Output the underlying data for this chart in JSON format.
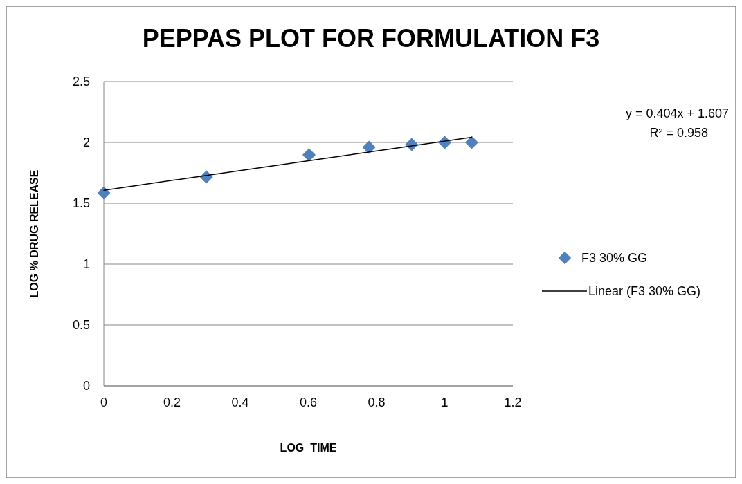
{
  "chart_data": {
    "type": "scatter",
    "title": "PEPPAS PLOT FOR FORMULATION F3",
    "xlabel": "LOG  TIME",
    "ylabel": "LOG % DRUG RELEASE",
    "xlim": [
      0,
      1.2
    ],
    "xticks": [
      0,
      0.2,
      0.4,
      0.6,
      0.8,
      1,
      1.2
    ],
    "ylim": [
      0,
      2.5
    ],
    "yticks": [
      0,
      0.5,
      1,
      1.5,
      2,
      2.5
    ],
    "grid": "y",
    "legend": "right",
    "annotations": [
      "y = 0.404x + 1.607",
      "R² = 0.958"
    ],
    "series": [
      {
        "name": "F3 30% GG",
        "type": "scatter",
        "marker": "diamond",
        "color": "#4f81bd",
        "x": [
          0,
          0.301,
          0.602,
          0.778,
          0.903,
          1,
          1.079
        ],
        "values": [
          1.585,
          1.716,
          1.898,
          1.96,
          1.983,
          2.0,
          2.0
        ]
      },
      {
        "name": "Linear (F3 30% GG)",
        "type": "line",
        "marker": "none",
        "color": "#000000",
        "x": [
          0,
          1.079
        ],
        "values": [
          1.607,
          2.043
        ]
      }
    ]
  }
}
